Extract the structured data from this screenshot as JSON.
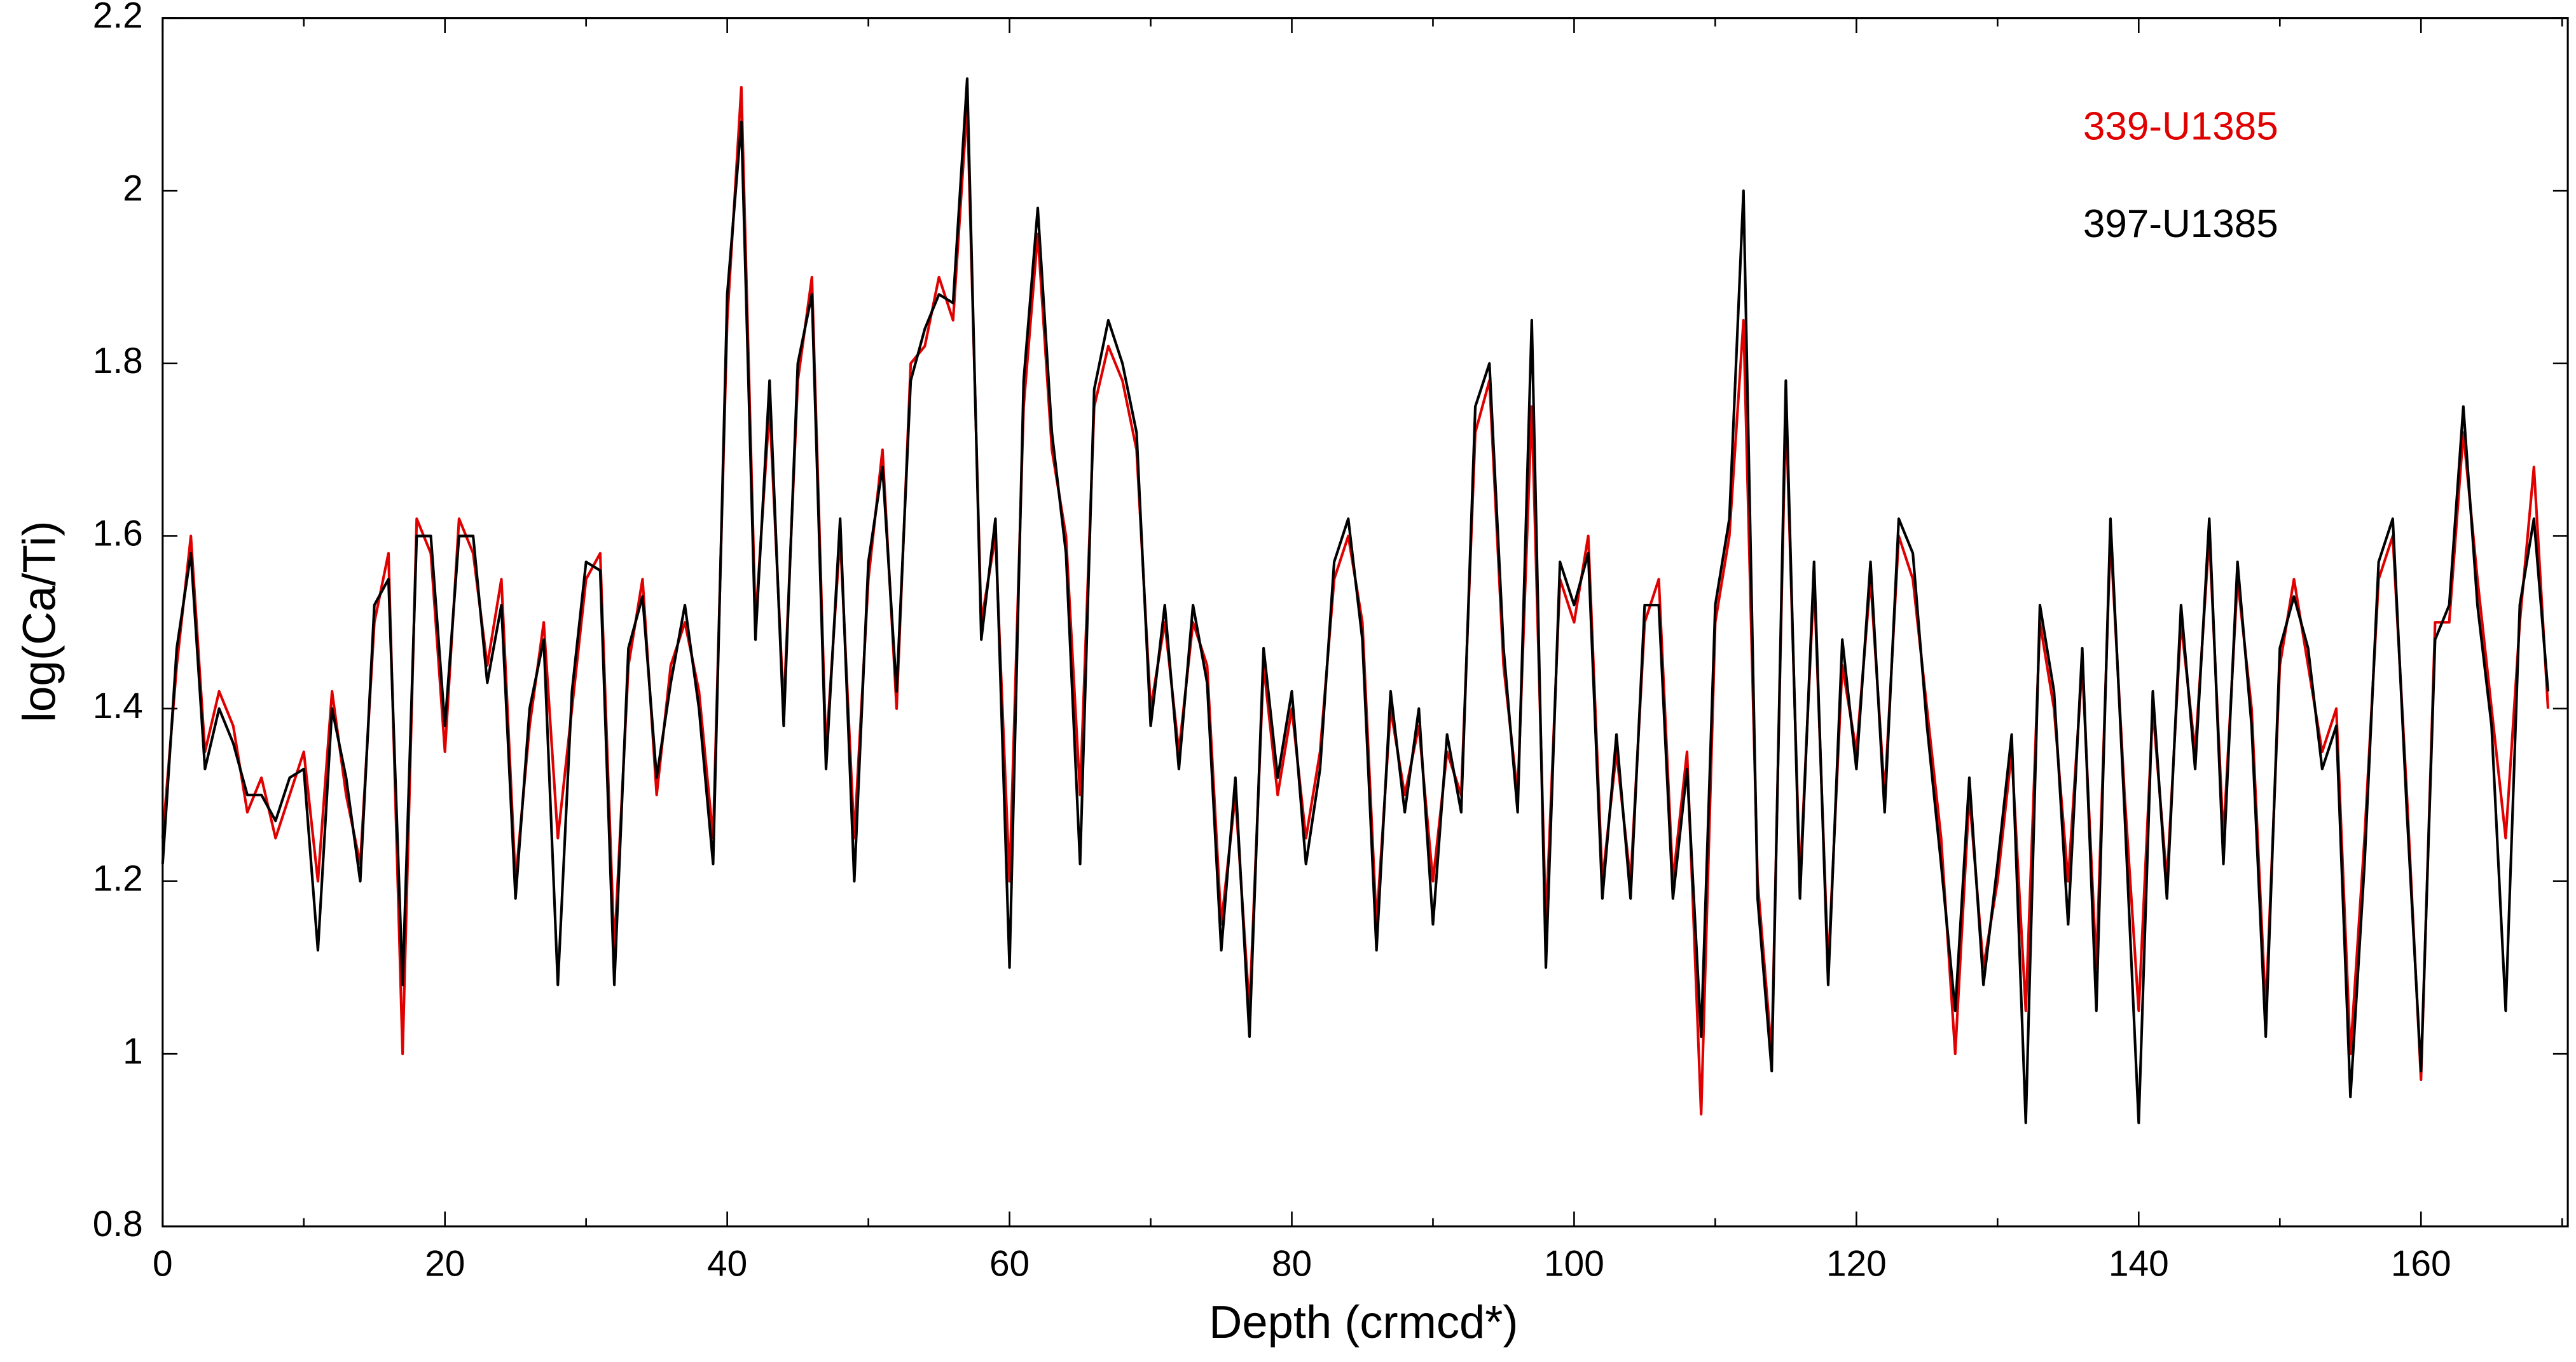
{
  "chart_data": {
    "type": "line",
    "xlabel": "Depth (crmcd*)",
    "ylabel": "log(Ca/Ti)",
    "x": [
      0,
      1,
      2,
      3,
      4,
      5,
      6,
      7,
      8,
      9,
      10,
      11,
      12,
      13,
      14,
      15,
      16,
      17,
      18,
      19,
      20,
      21,
      22,
      23,
      24,
      25,
      26,
      27,
      28,
      29,
      30,
      31,
      32,
      33,
      34,
      35,
      36,
      37,
      38,
      39,
      40,
      41,
      42,
      43,
      44,
      45,
      46,
      47,
      48,
      49,
      50,
      51,
      52,
      53,
      54,
      55,
      56,
      57,
      58,
      59,
      60,
      61,
      62,
      63,
      64,
      65,
      66,
      67,
      68,
      69,
      70,
      71,
      72,
      73,
      74,
      75,
      76,
      77,
      78,
      79,
      80,
      81,
      82,
      83,
      84,
      85,
      86,
      87,
      88,
      89,
      90,
      91,
      92,
      93,
      94,
      95,
      96,
      97,
      98,
      99,
      100,
      101,
      102,
      103,
      104,
      105,
      106,
      107,
      108,
      109,
      110,
      111,
      112,
      113,
      114,
      115,
      116,
      117,
      118,
      119,
      120,
      121,
      122,
      123,
      124,
      125,
      126,
      127,
      128,
      129,
      130,
      131,
      132,
      133,
      134,
      135,
      136,
      137,
      138,
      139,
      140,
      141,
      142,
      143,
      144,
      145,
      146,
      147,
      148,
      149,
      150,
      151,
      152,
      153,
      154,
      155,
      156,
      157,
      158,
      159,
      160,
      161,
      162,
      163,
      164,
      165,
      166,
      167,
      168,
      169
    ],
    "series": [
      {
        "name": "339-U1385",
        "color": "#e00000",
        "values": [
          1.25,
          1.45,
          1.6,
          1.35,
          1.42,
          1.38,
          1.28,
          1.32,
          1.25,
          1.3,
          1.35,
          1.2,
          1.42,
          1.3,
          1.22,
          1.5,
          1.58,
          1.0,
          1.62,
          1.58,
          1.35,
          1.62,
          1.58,
          1.45,
          1.55,
          1.2,
          1.38,
          1.5,
          1.25,
          1.4,
          1.55,
          1.58,
          1.12,
          1.45,
          1.55,
          1.3,
          1.45,
          1.5,
          1.42,
          1.25,
          1.85,
          2.12,
          1.5,
          1.75,
          1.4,
          1.78,
          1.9,
          1.35,
          1.6,
          1.25,
          1.55,
          1.7,
          1.4,
          1.8,
          1.82,
          1.9,
          1.85,
          2.1,
          1.5,
          1.6,
          1.2,
          1.75,
          1.95,
          1.7,
          1.6,
          1.3,
          1.75,
          1.82,
          1.78,
          1.7,
          1.4,
          1.5,
          1.35,
          1.5,
          1.45,
          1.15,
          1.3,
          1.05,
          1.45,
          1.3,
          1.4,
          1.25,
          1.35,
          1.55,
          1.6,
          1.5,
          1.15,
          1.4,
          1.3,
          1.38,
          1.2,
          1.35,
          1.3,
          1.72,
          1.78,
          1.45,
          1.3,
          1.75,
          1.15,
          1.55,
          1.5,
          1.6,
          1.2,
          1.35,
          1.2,
          1.5,
          1.55,
          1.2,
          1.35,
          0.93,
          1.5,
          1.6,
          1.85,
          1.2,
          1.0,
          1.75,
          1.2,
          1.55,
          1.1,
          1.45,
          1.35,
          1.55,
          1.3,
          1.6,
          1.55,
          1.4,
          1.25,
          1.0,
          1.3,
          1.1,
          1.2,
          1.35,
          1.05,
          1.5,
          1.4,
          1.2,
          1.45,
          1.1,
          1.6,
          1.3,
          1.05,
          1.4,
          1.2,
          1.5,
          1.35,
          1.6,
          1.25,
          1.55,
          1.4,
          1.05,
          1.45,
          1.55,
          1.45,
          1.35,
          1.4,
          1.0,
          1.25,
          1.55,
          1.6,
          1.3,
          0.97,
          1.5,
          1.5,
          1.72,
          1.55,
          1.4,
          1.25,
          1.5,
          1.68,
          1.4
        ]
      },
      {
        "name": "397-U1385",
        "color": "#000000",
        "values": [
          1.22,
          1.47,
          1.58,
          1.33,
          1.4,
          1.36,
          1.3,
          1.3,
          1.27,
          1.32,
          1.33,
          1.12,
          1.4,
          1.32,
          1.2,
          1.52,
          1.55,
          1.08,
          1.6,
          1.6,
          1.38,
          1.6,
          1.6,
          1.43,
          1.52,
          1.18,
          1.4,
          1.48,
          1.08,
          1.42,
          1.57,
          1.56,
          1.08,
          1.47,
          1.53,
          1.32,
          1.43,
          1.52,
          1.4,
          1.22,
          1.88,
          2.08,
          1.48,
          1.78,
          1.38,
          1.8,
          1.88,
          1.33,
          1.62,
          1.2,
          1.57,
          1.68,
          1.42,
          1.78,
          1.84,
          1.88,
          1.87,
          2.13,
          1.48,
          1.62,
          1.1,
          1.78,
          1.98,
          1.72,
          1.58,
          1.22,
          1.77,
          1.85,
          1.8,
          1.72,
          1.38,
          1.52,
          1.33,
          1.52,
          1.43,
          1.12,
          1.32,
          1.02,
          1.47,
          1.32,
          1.42,
          1.22,
          1.33,
          1.57,
          1.62,
          1.48,
          1.12,
          1.42,
          1.28,
          1.4,
          1.15,
          1.37,
          1.28,
          1.75,
          1.8,
          1.47,
          1.28,
          1.85,
          1.1,
          1.57,
          1.52,
          1.58,
          1.18,
          1.37,
          1.18,
          1.52,
          1.52,
          1.18,
          1.33,
          1.02,
          1.52,
          1.62,
          2.0,
          1.18,
          0.98,
          1.78,
          1.18,
          1.57,
          1.08,
          1.48,
          1.33,
          1.57,
          1.28,
          1.62,
          1.58,
          1.38,
          1.22,
          1.05,
          1.32,
          1.08,
          1.22,
          1.37,
          0.92,
          1.52,
          1.42,
          1.15,
          1.47,
          1.05,
          1.62,
          1.28,
          0.92,
          1.42,
          1.18,
          1.52,
          1.33,
          1.62,
          1.22,
          1.57,
          1.38,
          1.02,
          1.47,
          1.53,
          1.47,
          1.33,
          1.38,
          0.95,
          1.22,
          1.57,
          1.62,
          1.28,
          0.98,
          1.48,
          1.52,
          1.75,
          1.52,
          1.38,
          1.05,
          1.52,
          1.62,
          1.42
        ]
      }
    ],
    "xlim": [
      0,
      170.4
    ],
    "ylim": [
      0.8,
      2.2
    ],
    "xticks": [
      0,
      20,
      40,
      60,
      80,
      100,
      120,
      140,
      160
    ],
    "xminorticks": [
      10,
      30,
      50,
      70,
      90,
      110,
      130,
      150,
      170
    ],
    "yticks": [
      0.8,
      1,
      1.2,
      1.4,
      1.6,
      1.8,
      2,
      2.2
    ],
    "legend": "top-right",
    "grid": false
  }
}
